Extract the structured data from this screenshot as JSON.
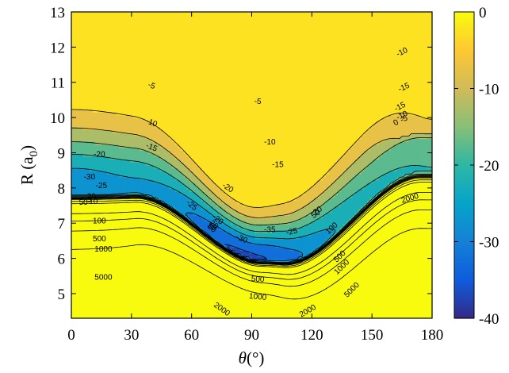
{
  "chart_data": {
    "type": "heatmap",
    "subtype": "filled-contour",
    "title": "",
    "xlabel_symbol": "θ",
    "xlabel_unit": "(°)",
    "ylabel_main": "R (a",
    "ylabel_sub": "0",
    "ylabel_close": ")",
    "xlim": [
      0,
      180
    ],
    "ylim": [
      4.3,
      13
    ],
    "xticks": [
      0,
      30,
      60,
      90,
      120,
      150,
      180
    ],
    "yticks": [
      5,
      6,
      7,
      8,
      9,
      10,
      11,
      12,
      13
    ],
    "colorbar": {
      "range": [
        -40,
        0
      ],
      "ticks": [
        0,
        -10,
        -20,
        -30,
        -40
      ],
      "colormap": "parula",
      "colors": [
        "#352a87",
        "#0f5cdd",
        "#1481d6",
        "#06a4ca",
        "#2eb7a4",
        "#87bf77",
        "#d1bb59",
        "#fec832",
        "#f9fb0e"
      ]
    },
    "contour_levels": [
      -35,
      -30,
      -25,
      -20,
      -15,
      -10,
      -5,
      0,
      5,
      10,
      20,
      50,
      100,
      500,
      1000,
      2000,
      5000
    ],
    "features": {
      "global_minimum": {
        "theta": 97,
        "R": 6.8,
        "depth": "below -35"
      },
      "secondary_minimum": {
        "theta": 0,
        "R": 8.4,
        "depth": "below -30"
      },
      "saddle": {
        "theta": 45,
        "R": 7.9,
        "depth": "about -20"
      }
    },
    "contour_labels": [
      {
        "text": "-5",
        "theta": 40,
        "R": 10.9
      },
      {
        "text": "-5",
        "theta": 93,
        "R": 10.45
      },
      {
        "text": "-10",
        "theta": 165,
        "R": 11.85
      },
      {
        "text": "-10",
        "theta": 40,
        "R": 9.85
      },
      {
        "text": "-10",
        "theta": 99,
        "R": 9.3
      },
      {
        "text": "-15",
        "theta": 166,
        "R": 10.85
      },
      {
        "text": "-15",
        "theta": 164,
        "R": 10.3
      },
      {
        "text": "-15",
        "theta": 40,
        "R": 9.15
      },
      {
        "text": "-15",
        "theta": 103,
        "R": 8.65
      },
      {
        "text": "-20",
        "theta": 14,
        "R": 8.95
      },
      {
        "text": "-20",
        "theta": 78,
        "R": 8.0
      },
      {
        "text": "-25",
        "theta": 15,
        "R": 8.05
      },
      {
        "text": "-25",
        "theta": 60,
        "R": 7.5
      },
      {
        "text": "-25",
        "theta": 110,
        "R": 6.75
      },
      {
        "text": "-30",
        "theta": 9,
        "R": 8.3
      },
      {
        "text": "-30",
        "theta": 85,
        "R": 6.55
      },
      {
        "text": "-35",
        "theta": 99,
        "R": 6.8
      },
      {
        "text": "-10",
        "theta": 165,
        "R": 10.05
      },
      {
        "text": "-5",
        "theta": 166,
        "R": 9.95
      },
      {
        "text": "0",
        "theta": 162,
        "R": 9.85
      },
      {
        "text": "20",
        "theta": 10,
        "R": 7.75
      },
      {
        "text": "5",
        "theta": 9,
        "R": 7.65
      },
      {
        "text": "10",
        "theta": 11,
        "R": 7.6
      },
      {
        "text": "50",
        "theta": 6,
        "R": 7.58
      },
      {
        "text": "-20",
        "theta": 73,
        "R": 7.1
      },
      {
        "text": "20",
        "theta": 71,
        "R": 6.95
      },
      {
        "text": "10",
        "theta": 70,
        "R": 6.9
      },
      {
        "text": "50",
        "theta": 70,
        "R": 6.85
      },
      {
        "text": "20",
        "theta": 123,
        "R": 7.35
      },
      {
        "text": "50",
        "theta": 122,
        "R": 7.25
      },
      {
        "text": "100",
        "theta": 14,
        "R": 7.05
      },
      {
        "text": "100",
        "theta": 130,
        "R": 6.85
      },
      {
        "text": "500",
        "theta": 14,
        "R": 6.55
      },
      {
        "text": "500",
        "theta": 93,
        "R": 5.4
      },
      {
        "text": "500",
        "theta": 134,
        "R": 6.05
      },
      {
        "text": "1000",
        "theta": 16,
        "R": 6.25
      },
      {
        "text": "1000",
        "theta": 93,
        "R": 4.9
      },
      {
        "text": "1000",
        "theta": 135,
        "R": 5.75
      },
      {
        "text": "2000",
        "theta": 169,
        "R": 7.7
      },
      {
        "text": "2000",
        "theta": 75,
        "R": 4.55
      },
      {
        "text": "2000",
        "theta": 118,
        "R": 4.5
      },
      {
        "text": "5000",
        "theta": 16,
        "R": 5.45
      },
      {
        "text": "5000",
        "theta": 140,
        "R": 5.1
      }
    ]
  }
}
